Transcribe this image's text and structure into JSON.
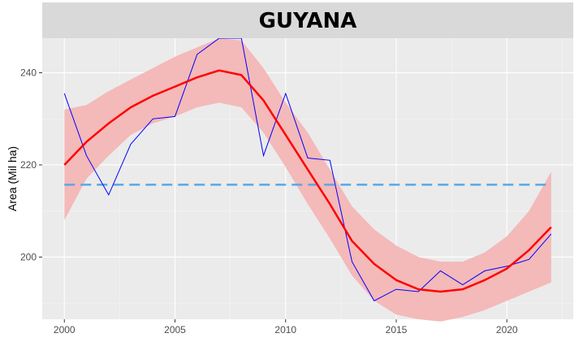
{
  "chart_data": {
    "type": "line",
    "title": "GUYANA",
    "xlabel": "",
    "ylabel": "Area (Mil ha)",
    "xlim": [
      1999.0,
      2023.0
    ],
    "ylim": [
      186.5,
      247.5
    ],
    "x_ticks": [
      2000,
      2005,
      2010,
      2015,
      2020
    ],
    "x_tick_labels": [
      "2000",
      "2005",
      "2010",
      "2015",
      "2020"
    ],
    "y_ticks": [
      200,
      220,
      240
    ],
    "y_tick_labels": [
      "200",
      "220",
      "240"
    ],
    "grid": true,
    "legend": "none",
    "colors": {
      "panel": "#ebebeb",
      "strip": "#d9d9d9",
      "observed": "#0000ff",
      "smooth": "#ff0000",
      "band": "#f4b9b9",
      "mean_line": "#5aa8e3"
    },
    "series": [
      {
        "kind": "observed",
        "x": [
          2000,
          2001,
          2002,
          2003,
          2004,
          2005,
          2006,
          2007,
          2008,
          2009,
          2010,
          2011,
          2012,
          2013,
          2014,
          2015,
          2016,
          2017,
          2018,
          2019,
          2020,
          2021,
          2022
        ],
        "values": [
          235.5,
          222.0,
          213.5,
          224.5,
          230.0,
          230.5,
          244.0,
          247.5,
          247.5,
          222.0,
          235.5,
          221.5,
          221.0,
          199.0,
          190.5,
          193.0,
          192.5,
          197.0,
          194.0,
          197.0,
          198.0,
          199.5,
          205.0
        ]
      },
      {
        "kind": "smooth",
        "x": [
          2000,
          2001,
          2002,
          2003,
          2004,
          2005,
          2006,
          2007,
          2008,
          2009,
          2010,
          2011,
          2012,
          2013,
          2014,
          2015,
          2016,
          2017,
          2018,
          2019,
          2020,
          2021,
          2022
        ],
        "values": [
          220.0,
          225.0,
          229.0,
          232.5,
          235.0,
          237.0,
          239.0,
          240.5,
          239.5,
          234.0,
          226.5,
          219.0,
          211.5,
          203.5,
          198.5,
          195.0,
          193.0,
          192.5,
          193.0,
          195.0,
          197.5,
          201.5,
          206.5
        ],
        "lower": [
          208.0,
          217.0,
          222.0,
          226.5,
          229.0,
          230.5,
          232.5,
          233.5,
          232.5,
          227.0,
          219.5,
          211.5,
          204.0,
          196.0,
          190.5,
          187.5,
          186.5,
          186.0,
          187.0,
          188.5,
          190.5,
          192.5,
          194.5
        ],
        "upper": [
          232.0,
          233.0,
          236.0,
          238.5,
          241.0,
          243.5,
          245.5,
          247.5,
          247.0,
          241.0,
          233.5,
          227.0,
          219.0,
          211.0,
          206.0,
          202.5,
          200.0,
          199.0,
          199.0,
          201.0,
          204.5,
          210.0,
          218.5
        ]
      },
      {
        "kind": "mean",
        "x": [
          2000,
          2022
        ],
        "values": [
          215.7,
          215.7
        ]
      }
    ]
  }
}
